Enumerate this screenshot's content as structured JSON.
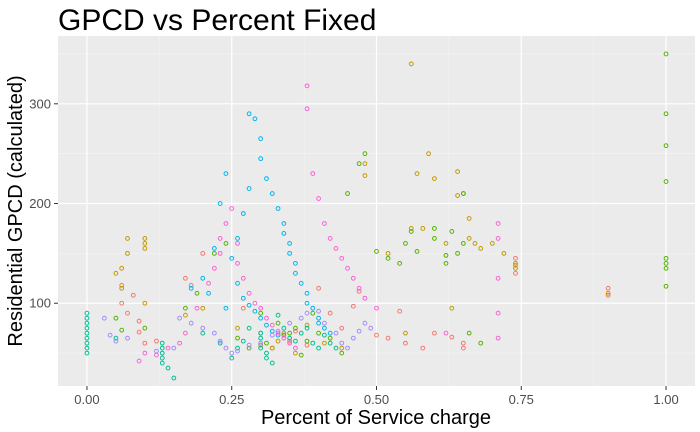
{
  "chart_data": {
    "type": "scatter",
    "title": "GPCD vs Percent Fixed",
    "xlabel": "Percent of Service charge",
    "ylabel": "Residential GPCD (calculated)",
    "xlim": [
      -0.05,
      1.05
    ],
    "ylim": [
      17,
      368
    ],
    "x_ticks": [
      0,
      0.25,
      0.5,
      0.75,
      1
    ],
    "x_tick_labels": [
      "0.00",
      "0.25",
      "0.50",
      "0.75",
      "1.00"
    ],
    "y_ticks": [
      100,
      200,
      300
    ],
    "y_tick_labels": [
      "100",
      "200",
      "300"
    ],
    "grid": true,
    "legend": "none",
    "series": [
      {
        "color": "#F8766D",
        "points": [
          [
            0.06,
            118
          ],
          [
            0.06,
            100
          ],
          [
            0.07,
            90
          ],
          [
            0.08,
            108
          ],
          [
            0.09,
            82
          ],
          [
            0.09,
            71
          ],
          [
            0.1,
            60
          ],
          [
            0.12,
            62
          ],
          [
            0.17,
            125
          ],
          [
            0.18,
            118
          ],
          [
            0.2,
            150
          ],
          [
            0.27,
            95
          ],
          [
            0.3,
            70
          ],
          [
            0.32,
            55
          ],
          [
            0.35,
            62
          ],
          [
            0.36,
            72
          ],
          [
            0.38,
            58
          ],
          [
            0.4,
            115
          ],
          [
            0.42,
            90
          ],
          [
            0.44,
            75
          ],
          [
            0.46,
            97
          ],
          [
            0.47,
            112
          ],
          [
            0.5,
            68
          ],
          [
            0.52,
            65
          ],
          [
            0.54,
            92
          ],
          [
            0.55,
            60
          ],
          [
            0.58,
            55
          ],
          [
            0.6,
            70
          ],
          [
            0.63,
            66
          ],
          [
            0.65,
            60
          ],
          [
            0.65,
            55
          ],
          [
            0.74,
            145
          ],
          [
            0.74,
            130
          ],
          [
            0.74,
            138
          ],
          [
            0.9,
            108
          ],
          [
            0.9,
            115
          ]
        ]
      },
      {
        "color": "#C49A00",
        "points": [
          [
            0.05,
            130
          ],
          [
            0.06,
            115
          ],
          [
            0.06,
            135
          ],
          [
            0.07,
            150
          ],
          [
            0.07,
            165
          ],
          [
            0.1,
            100
          ],
          [
            0.1,
            165
          ],
          [
            0.1,
            160
          ],
          [
            0.1,
            155
          ],
          [
            0.17,
            88
          ],
          [
            0.2,
            95
          ],
          [
            0.26,
            75
          ],
          [
            0.3,
            58
          ],
          [
            0.32,
            55
          ],
          [
            0.33,
            62
          ],
          [
            0.34,
            70
          ],
          [
            0.36,
            50
          ],
          [
            0.38,
            78
          ],
          [
            0.41,
            60
          ],
          [
            0.44,
            55
          ],
          [
            0.48,
            240
          ],
          [
            0.48,
            228
          ],
          [
            0.52,
            150
          ],
          [
            0.55,
            70
          ],
          [
            0.56,
            175
          ],
          [
            0.56,
            340
          ],
          [
            0.57,
            230
          ],
          [
            0.58,
            175
          ],
          [
            0.59,
            250
          ],
          [
            0.6,
            225
          ],
          [
            0.62,
            160
          ],
          [
            0.63,
            95
          ],
          [
            0.64,
            232
          ],
          [
            0.64,
            208
          ],
          [
            0.65,
            210
          ],
          [
            0.66,
            185
          ],
          [
            0.66,
            165
          ],
          [
            0.67,
            160
          ],
          [
            0.68,
            155
          ],
          [
            0.7,
            160
          ],
          [
            0.72,
            150
          ],
          [
            0.74,
            140
          ],
          [
            0.74,
            135
          ],
          [
            0.9,
            110
          ]
        ]
      },
      {
        "color": "#53B400",
        "points": [
          [
            0.05,
            85
          ],
          [
            0.06,
            73
          ],
          [
            0.1,
            75
          ],
          [
            0.17,
            95
          ],
          [
            0.19,
            110
          ],
          [
            0.22,
            150
          ],
          [
            0.24,
            160
          ],
          [
            0.26,
            65
          ],
          [
            0.28,
            55
          ],
          [
            0.3,
            90
          ],
          [
            0.31,
            60
          ],
          [
            0.33,
            80
          ],
          [
            0.34,
            68
          ],
          [
            0.35,
            70
          ],
          [
            0.36,
            75
          ],
          [
            0.37,
            48
          ],
          [
            0.38,
            62
          ],
          [
            0.39,
            90
          ],
          [
            0.4,
            70
          ],
          [
            0.42,
            65
          ],
          [
            0.44,
            50
          ],
          [
            0.45,
            210
          ],
          [
            0.47,
            240
          ],
          [
            0.48,
            250
          ],
          [
            0.5,
            152
          ],
          [
            0.52,
            145
          ],
          [
            0.54,
            140
          ],
          [
            0.55,
            160
          ],
          [
            0.56,
            172
          ],
          [
            0.57,
            152
          ],
          [
            0.6,
            175
          ],
          [
            0.6,
            165
          ],
          [
            0.62,
            148
          ],
          [
            0.62,
            140
          ],
          [
            0.63,
            172
          ],
          [
            0.64,
            150
          ],
          [
            0.65,
            160
          ],
          [
            0.65,
            210
          ],
          [
            0.66,
            70
          ],
          [
            0.68,
            60
          ],
          [
            1,
            350
          ],
          [
            1,
            290
          ],
          [
            1,
            258
          ],
          [
            1,
            222
          ],
          [
            1,
            145
          ],
          [
            1,
            140
          ],
          [
            1,
            135
          ],
          [
            1,
            117
          ]
        ]
      },
      {
        "color": "#00C094",
        "points": [
          [
            0,
            90
          ],
          [
            0,
            85
          ],
          [
            0,
            80
          ],
          [
            0,
            75
          ],
          [
            0,
            70
          ],
          [
            0,
            65
          ],
          [
            0,
            60
          ],
          [
            0,
            55
          ],
          [
            0,
            50
          ],
          [
            0.05,
            65
          ],
          [
            0.13,
            60
          ],
          [
            0.13,
            55
          ],
          [
            0.13,
            50
          ],
          [
            0.13,
            45
          ],
          [
            0.13,
            40
          ],
          [
            0.14,
            35
          ],
          [
            0.15,
            25
          ],
          [
            0.2,
            70
          ],
          [
            0.23,
            60
          ],
          [
            0.25,
            45
          ],
          [
            0.26,
            55
          ],
          [
            0.27,
            62
          ],
          [
            0.28,
            75
          ],
          [
            0.3,
            70
          ],
          [
            0.3,
            65
          ],
          [
            0.3,
            55
          ],
          [
            0.31,
            50
          ],
          [
            0.31,
            45
          ],
          [
            0.32,
            40
          ],
          [
            0.33,
            88
          ],
          [
            0.34,
            75
          ],
          [
            0.35,
            65
          ],
          [
            0.36,
            62
          ],
          [
            0.37,
            70
          ],
          [
            0.38,
            75
          ],
          [
            0.39,
            60
          ],
          [
            0.4,
            55
          ],
          [
            0.41,
            68
          ],
          [
            0.42,
            60
          ],
          [
            0.43,
            55
          ]
        ]
      },
      {
        "color": "#00B6EB",
        "points": [
          [
            0.18,
            115
          ],
          [
            0.2,
            125
          ],
          [
            0.21,
            110
          ],
          [
            0.22,
            155
          ],
          [
            0.23,
            200
          ],
          [
            0.24,
            230
          ],
          [
            0.25,
            145
          ],
          [
            0.26,
            165
          ],
          [
            0.27,
            190
          ],
          [
            0.28,
            215
          ],
          [
            0.28,
            290
          ],
          [
            0.29,
            285
          ],
          [
            0.3,
            265
          ],
          [
            0.3,
            245
          ],
          [
            0.31,
            225
          ],
          [
            0.32,
            210
          ],
          [
            0.33,
            195
          ],
          [
            0.34,
            180
          ],
          [
            0.34,
            170
          ],
          [
            0.35,
            160
          ],
          [
            0.35,
            150
          ],
          [
            0.36,
            140
          ],
          [
            0.36,
            130
          ],
          [
            0.37,
            120
          ],
          [
            0.38,
            110
          ],
          [
            0.38,
            100
          ],
          [
            0.39,
            95
          ],
          [
            0.4,
            85
          ],
          [
            0.4,
            80
          ],
          [
            0.41,
            75
          ],
          [
            0.42,
            70
          ],
          [
            0.26,
            120
          ],
          [
            0.27,
            105
          ],
          [
            0.28,
            98
          ],
          [
            0.29,
            92
          ],
          [
            0.3,
            85
          ],
          [
            0.31,
            78
          ],
          [
            0.32,
            72
          ],
          [
            0.33,
            68
          ],
          [
            0.24,
            95
          ]
        ]
      },
      {
        "color": "#A58AFF",
        "points": [
          [
            0.03,
            85
          ],
          [
            0.04,
            68
          ],
          [
            0.05,
            62
          ],
          [
            0.07,
            65
          ],
          [
            0.12,
            52
          ],
          [
            0.15,
            55
          ],
          [
            0.16,
            85
          ],
          [
            0.18,
            80
          ],
          [
            0.2,
            75
          ],
          [
            0.22,
            70
          ],
          [
            0.23,
            62
          ],
          [
            0.24,
            55
          ],
          [
            0.25,
            50
          ],
          [
            0.26,
            52
          ],
          [
            0.28,
            58
          ],
          [
            0.3,
            60
          ],
          [
            0.32,
            68
          ],
          [
            0.33,
            72
          ],
          [
            0.35,
            80
          ],
          [
            0.37,
            85
          ],
          [
            0.38,
            90
          ],
          [
            0.4,
            92
          ],
          [
            0.41,
            80
          ],
          [
            0.43,
            70
          ],
          [
            0.44,
            60
          ],
          [
            0.45,
            55
          ],
          [
            0.46,
            65
          ],
          [
            0.47,
            72
          ],
          [
            0.48,
            80
          ],
          [
            0.49,
            75
          ]
        ]
      },
      {
        "color": "#FB61D7",
        "points": [
          [
            0.09,
            42
          ],
          [
            0.1,
            50
          ],
          [
            0.12,
            48
          ],
          [
            0.14,
            55
          ],
          [
            0.16,
            60
          ],
          [
            0.17,
            70
          ],
          [
            0.19,
            95
          ],
          [
            0.21,
            120
          ],
          [
            0.22,
            135
          ],
          [
            0.23,
            150
          ],
          [
            0.23,
            165
          ],
          [
            0.24,
            180
          ],
          [
            0.25,
            195
          ],
          [
            0.26,
            160
          ],
          [
            0.26,
            140
          ],
          [
            0.27,
            125
          ],
          [
            0.28,
            110
          ],
          [
            0.29,
            100
          ],
          [
            0.3,
            95
          ],
          [
            0.31,
            85
          ],
          [
            0.32,
            78
          ],
          [
            0.33,
            70
          ],
          [
            0.34,
            65
          ],
          [
            0.35,
            60
          ],
          [
            0.36,
            55
          ],
          [
            0.38,
            318
          ],
          [
            0.38,
            295
          ],
          [
            0.39,
            230
          ],
          [
            0.4,
            205
          ],
          [
            0.41,
            180
          ],
          [
            0.42,
            165
          ],
          [
            0.43,
            155
          ],
          [
            0.44,
            145
          ],
          [
            0.45,
            135
          ],
          [
            0.46,
            125
          ],
          [
            0.47,
            115
          ],
          [
            0.48,
            105
          ],
          [
            0.5,
            95
          ],
          [
            0.62,
            70
          ],
          [
            0.71,
            180
          ],
          [
            0.71,
            165
          ],
          [
            0.71,
            125
          ],
          [
            0.71,
            90
          ],
          [
            0.71,
            65
          ]
        ]
      }
    ]
  }
}
